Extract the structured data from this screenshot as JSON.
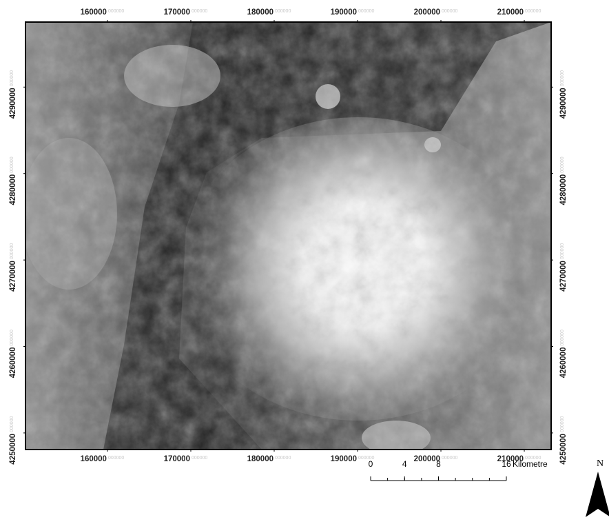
{
  "map": {
    "x_ticks": [
      160000,
      170000,
      180000,
      190000,
      200000,
      210000
    ],
    "y_ticks": [
      4250000,
      4260000,
      4270000,
      4280000,
      4290000
    ],
    "minor_label": "000000",
    "xlim": [
      150170,
      213220
    ],
    "ylim": [
      4248080,
      4297520
    ],
    "scale_bar": {
      "ticks": [
        0,
        4,
        8,
        16
      ],
      "unit": "Kilometre"
    },
    "north": "N"
  }
}
